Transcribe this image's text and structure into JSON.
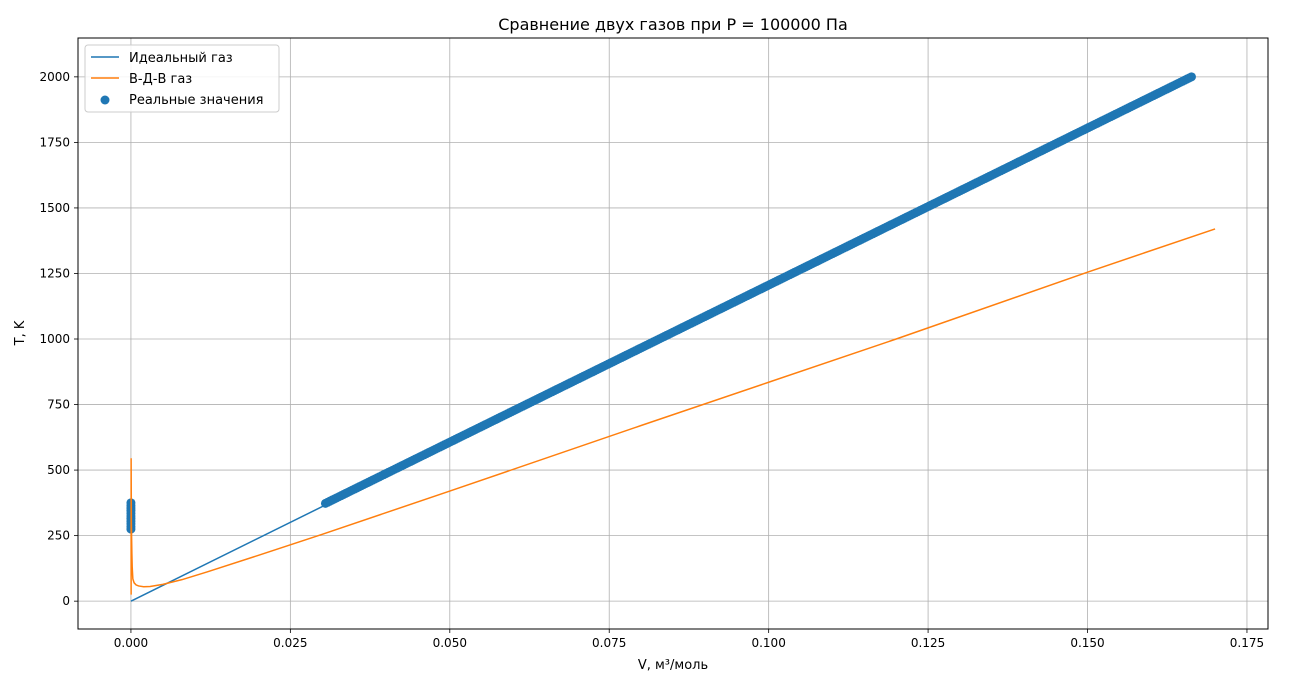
{
  "chart_data": {
    "type": "line",
    "title": "Сравнение двух газов при P = 100000 Па",
    "xlabel": "V, м³/моль",
    "ylabel": "T, K",
    "xlim": [
      -0.0083,
      0.1783
    ],
    "ylim": [
      -106.2,
      2148.2
    ],
    "grid": true,
    "legend_position": "top-left",
    "x_ticks": [
      "0.000",
      "0.025",
      "0.050",
      "0.075",
      "0.100",
      "0.125",
      "0.150",
      "0.175"
    ],
    "x_tick_values": [
      0,
      0.025,
      0.05,
      0.075,
      0.1,
      0.125,
      0.15,
      0.175
    ],
    "y_ticks": [
      "0",
      "250",
      "500",
      "750",
      "1000",
      "1250",
      "1500",
      "1750",
      "2000"
    ],
    "y_tick_values": [
      0,
      250,
      500,
      750,
      1000,
      1250,
      1500,
      1750,
      2000
    ],
    "series": [
      {
        "name": "Идеальный газ",
        "kind": "line",
        "color": "#1f77b4",
        "x": [
          0.0,
          0.1663
        ],
        "y": [
          0,
          2000
        ]
      },
      {
        "name": "В-Д-В газ",
        "kind": "line",
        "color": "#ff7f0e",
        "x": [
          3e-05,
          3e-05,
          5e-05,
          7e-05,
          0.0001,
          0.00015,
          0.0002,
          0.0003,
          0.0005,
          0.0008,
          0.0012,
          0.002,
          0.003,
          0.005,
          0.008,
          0.012,
          0.02,
          0.03,
          0.05,
          0.08,
          0.1,
          0.12,
          0.15,
          0.17
        ],
        "y": [
          25,
          545,
          420,
          300,
          250,
          180,
          130,
          85,
          70,
          62,
          58,
          55,
          56,
          64,
          82,
          112,
          175,
          255,
          420,
          670,
          835,
          1000,
          1255,
          1420
        ],
        "note": ""
      },
      {
        "name": "Реальные значения",
        "kind": "scatter",
        "color": "#1f77b4",
        "segments": [
          {
            "x": [
              0.0,
              0.0
            ],
            "y": [
              275,
              375
            ]
          },
          {
            "x": [
              0.0305,
              0.1663
            ],
            "y": [
              373,
              2000
            ]
          }
        ]
      }
    ]
  }
}
